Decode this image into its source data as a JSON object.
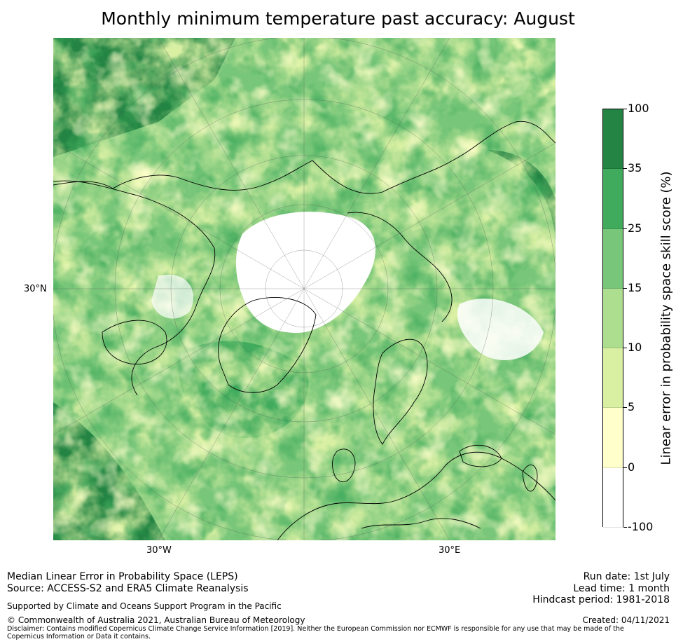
{
  "title": "Monthly minimum temperature past accuracy: August",
  "map": {
    "projection": "north-polar-stereographic",
    "lat_labels": [
      {
        "text": "30°N"
      }
    ],
    "lon_labels": [
      {
        "text": "30°W"
      },
      {
        "text": "30°E"
      }
    ],
    "colors": {
      "ocean_base": "#41a85f",
      "land_base": "#a8db8f",
      "coastline": "#000000",
      "gridline": "#555555"
    }
  },
  "colorbar": {
    "label": "Linear error in probability space skill score (%)",
    "ticks": [
      "-100",
      "0",
      "5",
      "10",
      "15",
      "25",
      "35",
      "100"
    ],
    "bins": [
      {
        "from": -100,
        "to": 0,
        "color": "#ffffff"
      },
      {
        "from": 0,
        "to": 5,
        "color": "#ffffcc"
      },
      {
        "from": 5,
        "to": 10,
        "color": "#d9f0a3"
      },
      {
        "from": 10,
        "to": 15,
        "color": "#addd8e"
      },
      {
        "from": 15,
        "to": 25,
        "color": "#78c679"
      },
      {
        "from": 25,
        "to": 35,
        "color": "#41ab5d"
      },
      {
        "from": 35,
        "to": 100,
        "color": "#238443"
      }
    ]
  },
  "footer": {
    "left_line1": "Median Linear Error in Probability Space (LEPS)",
    "left_line2": "Source: ACCESS-S2 and ERA5 Climate Reanalysis",
    "support": "Supported by Climate and Oceans Support Program in the Pacific",
    "copyright": "© Commonwealth of Australia 2021, Australian Bureau of Meteorology",
    "disclaimer": "Disclaimer: Contains modified Copernicus Climate Change Service Information [2019]. Neither the European Commission nor ECMWF is responsible for any use that may be made of the Copernicus Information or Data it contains.",
    "run_date": "Run date: 1st July",
    "lead_time": "Lead time: 1 month",
    "hindcast": "Hindcast period: 1981-2018",
    "created": "Created: 04/11/2021"
  }
}
